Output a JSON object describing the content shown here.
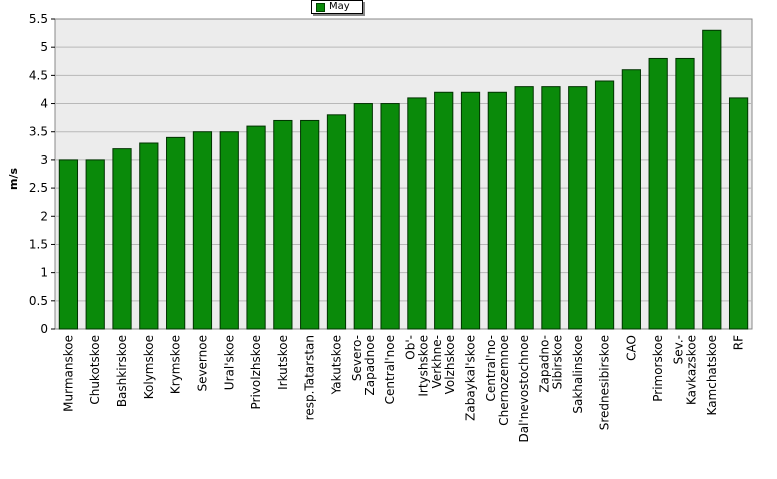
{
  "chart_data": {
    "type": "bar",
    "title": "",
    "xlabel": "",
    "ylabel": "m/s",
    "ylim": [
      0,
      5.5
    ],
    "yticks": [
      "0",
      "0.5",
      "1",
      "1.5",
      "2",
      "2.5",
      "3",
      "3.5",
      "4",
      "4.5",
      "5",
      "5.5"
    ],
    "grid": true,
    "legend_position": "top-center",
    "categories": [
      "Murmanskoe",
      "Chukotskoe",
      "Bashkirskoe",
      "Kolymskoe",
      "Krymskoe",
      "Severnoe",
      "Ural'skoe",
      "Privolzhskoe",
      "Irkutskoe",
      "resp.Tatarstan",
      "Yakutskoe",
      "Severo-Zapadnoe",
      "Central'noe",
      "Ob'-Irtyshskoe",
      "Verkhne-Volzhskoe",
      "Zabaykal'skoe",
      "Central'no-Chernozemnoe",
      "Dal'nevostochnoe",
      "Zapadno-Sibirskoe",
      "Sakhalinskoe",
      "Srednesibirskoe",
      "CAO",
      "Primorskoe",
      "Sev.-Kavkazskoe",
      "Kamchatskoe",
      "RF"
    ],
    "category_lines": [
      [
        "Murmanskoe"
      ],
      [
        "Chukotskoe"
      ],
      [
        "Bashkirskoe"
      ],
      [
        "Kolymskoe"
      ],
      [
        "Krymskoe"
      ],
      [
        "Severnoe"
      ],
      [
        "Ural'skoe"
      ],
      [
        "Privolzhskoe"
      ],
      [
        "Irkutskoe"
      ],
      [
        "resp.Tatarstan"
      ],
      [
        "Yakutskoe"
      ],
      [
        "Severo-",
        "Zapadnoe"
      ],
      [
        "Central'noe"
      ],
      [
        "Ob'-",
        "Irtyshskoe"
      ],
      [
        "Verkhne-",
        "Volzhskoe"
      ],
      [
        "Zabaykal'skoe"
      ],
      [
        "Central'no-",
        "Chernozemnoe"
      ],
      [
        "Dal'nevostochnoe"
      ],
      [
        "Zapadno-",
        "Sibirskoe"
      ],
      [
        "Sakhalinskoe"
      ],
      [
        "Srednesibirskoe"
      ],
      [
        "CAO"
      ],
      [
        "Primorskoe"
      ],
      [
        "Sev.-",
        "Kavkazskoe"
      ],
      [
        "Kamchatskoe"
      ],
      [
        "RF"
      ]
    ],
    "series": [
      {
        "name": "May",
        "color": "#0a8a0a",
        "values": [
          3.0,
          3.0,
          3.2,
          3.3,
          3.4,
          3.5,
          3.5,
          3.6,
          3.7,
          3.7,
          3.8,
          4.0,
          4.0,
          4.1,
          4.2,
          4.2,
          4.2,
          4.3,
          4.3,
          4.3,
          4.4,
          4.6,
          4.8,
          4.8,
          5.3,
          4.1
        ]
      }
    ]
  }
}
